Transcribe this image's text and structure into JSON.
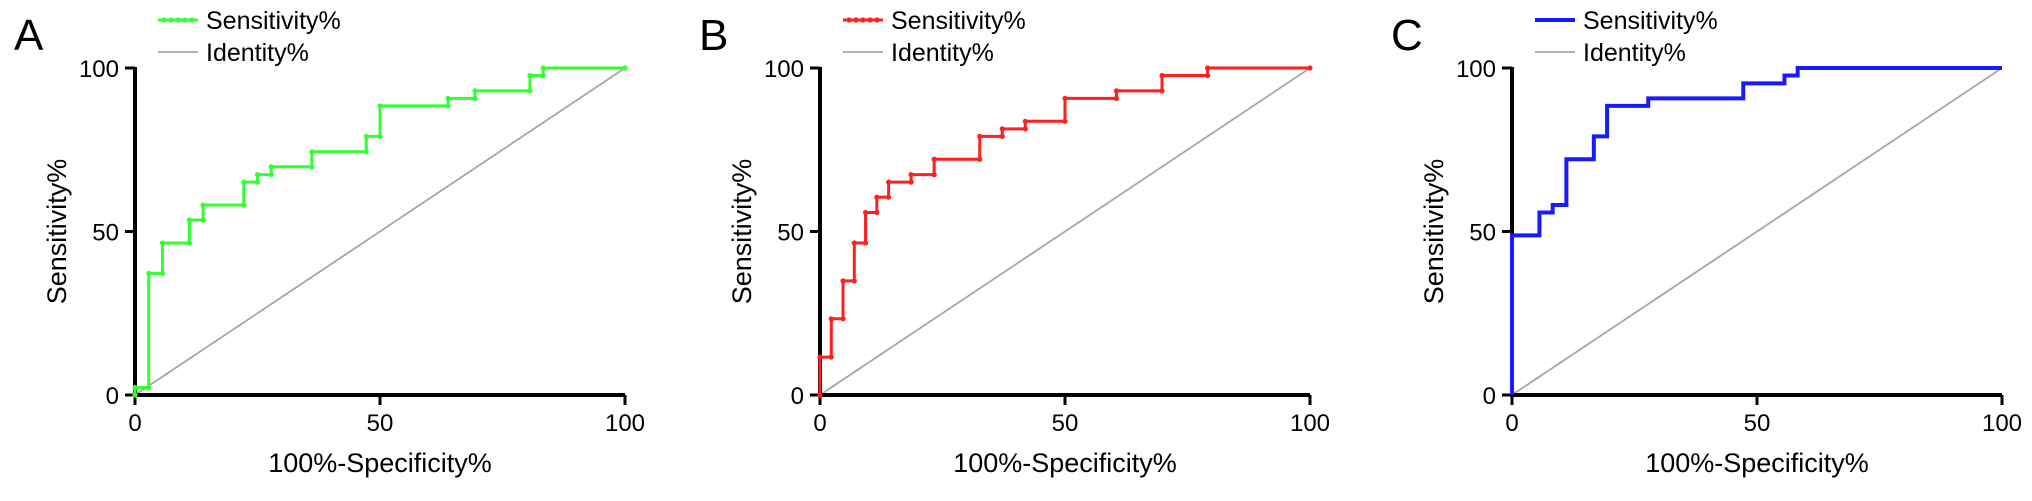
{
  "panels": [
    {
      "letter": "A",
      "color": "#33ff33",
      "markers": true,
      "legend": [
        "Sensitivity%",
        "Identity%"
      ],
      "identity_color": "#a6a6a6"
    },
    {
      "letter": "B",
      "color": "#ff2020",
      "markers": true,
      "legend": [
        "Sensitivity%",
        "Identity%"
      ],
      "identity_color": "#a6a6a6"
    },
    {
      "letter": "C",
      "color": "#1a1aff",
      "markers": false,
      "legend": [
        "Sensitivity%",
        "Identity%"
      ],
      "identity_color": "#a6a6a6"
    }
  ],
  "chart_data": [
    {
      "type": "line",
      "xlabel": "100%-Specificity%",
      "ylabel": "Sensitivity%",
      "xlim": [
        0,
        100
      ],
      "ylim": [
        0,
        100
      ],
      "xticks": [
        0,
        50,
        100
      ],
      "yticks": [
        0,
        50,
        100
      ],
      "grid": false,
      "legend_position": "top-left",
      "series": [
        {
          "name": "Sensitivity%",
          "x": [
            0,
            0,
            2.8,
            2.8,
            5.6,
            5.6,
            11.1,
            11.1,
            13.9,
            13.9,
            22.2,
            22.2,
            25,
            25,
            27.8,
            27.8,
            36.1,
            36.1,
            47.2,
            47.2,
            50,
            50,
            63.9,
            63.9,
            69.4,
            69.4,
            80.6,
            80.6,
            83.3,
            83.3,
            100
          ],
          "y": [
            0,
            2.3,
            2.3,
            37.2,
            37.2,
            46.5,
            46.5,
            53.5,
            53.5,
            58.1,
            58.1,
            65.1,
            65.1,
            67.4,
            67.4,
            69.8,
            69.8,
            74.4,
            74.4,
            79.1,
            79.1,
            88.4,
            88.4,
            90.7,
            90.7,
            93,
            93,
            97.7,
            97.7,
            100,
            100
          ]
        },
        {
          "name": "Identity%",
          "x": [
            0,
            100
          ],
          "y": [
            0,
            100
          ]
        }
      ]
    },
    {
      "type": "line",
      "xlabel": "100%-Specificity%",
      "ylabel": "Sensitivity%",
      "xlim": [
        0,
        100
      ],
      "ylim": [
        0,
        100
      ],
      "xticks": [
        0,
        50,
        100
      ],
      "yticks": [
        0,
        50,
        100
      ],
      "grid": false,
      "legend_position": "top-left",
      "series": [
        {
          "name": "Sensitivity%",
          "x": [
            0,
            0,
            2.3,
            2.3,
            4.7,
            4.7,
            7,
            7,
            9.3,
            9.3,
            11.6,
            11.6,
            14,
            14,
            18.6,
            18.6,
            23.3,
            23.3,
            32.6,
            32.6,
            37.2,
            37.2,
            41.9,
            41.9,
            50,
            50,
            60.5,
            60.5,
            69.8,
            69.8,
            79.1,
            79.1,
            100
          ],
          "y": [
            0,
            11.6,
            11.6,
            23.3,
            23.3,
            34.9,
            34.9,
            46.5,
            46.5,
            55.8,
            55.8,
            60.5,
            60.5,
            65.1,
            65.1,
            67.4,
            67.4,
            72.1,
            72.1,
            79.1,
            79.1,
            81.4,
            81.4,
            83.7,
            83.7,
            90.7,
            90.7,
            93,
            93,
            97.7,
            97.7,
            100,
            100
          ]
        },
        {
          "name": "Identity%",
          "x": [
            0,
            100
          ],
          "y": [
            0,
            100
          ]
        }
      ]
    },
    {
      "type": "line",
      "xlabel": "100%-Specificity%",
      "ylabel": "Sensitivity%",
      "xlim": [
        0,
        100
      ],
      "ylim": [
        0,
        100
      ],
      "xticks": [
        0,
        50,
        100
      ],
      "yticks": [
        0,
        50,
        100
      ],
      "grid": false,
      "legend_position": "top-left",
      "series": [
        {
          "name": "Sensitivity%",
          "x": [
            0,
            0,
            5.6,
            5.6,
            8.3,
            8.3,
            11.1,
            11.1,
            16.7,
            16.7,
            19.4,
            19.4,
            27.8,
            27.8,
            47.2,
            47.2,
            55.6,
            55.6,
            58.3,
            58.3,
            100
          ],
          "y": [
            0,
            48.8,
            48.8,
            55.8,
            55.8,
            58.1,
            58.1,
            72.1,
            72.1,
            79.1,
            79.1,
            88.4,
            88.4,
            90.7,
            90.7,
            95.3,
            95.3,
            97.7,
            97.7,
            100,
            100
          ]
        },
        {
          "name": "Identity%",
          "x": [
            0,
            100
          ],
          "y": [
            0,
            100
          ]
        }
      ]
    }
  ]
}
